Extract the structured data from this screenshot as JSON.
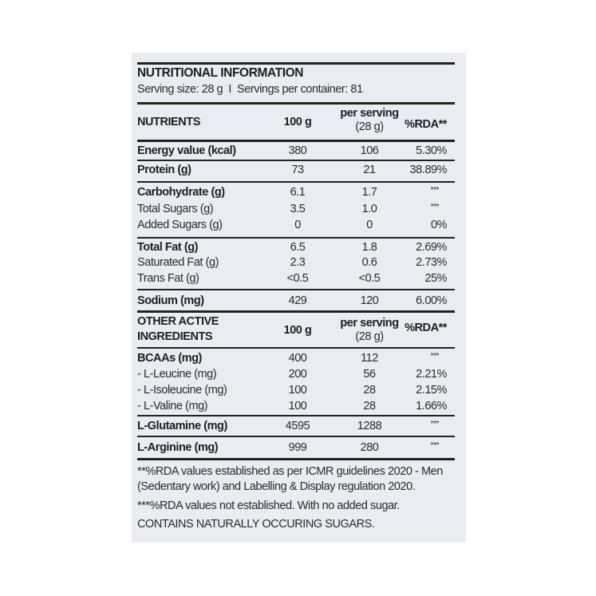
{
  "title": "NUTRITIONAL INFORMATION",
  "serving_line": "Serving size: 28 g  I  Servings per container: 81",
  "header": {
    "col0": "NUTRIENTS",
    "col1": "100 g",
    "col2a": "per serving",
    "col2b": "(28 g)",
    "col3": "%RDA**"
  },
  "header2": {
    "col0a": "OTHER ACTIVE",
    "col0b": "INGREDIENTS",
    "col1": "100 g",
    "col2a": "per serving",
    "col2b": "(28 g)",
    "col3": "%RDA**"
  },
  "rows": [
    {
      "name": "Energy value (kcal)",
      "per100": "380",
      "serving": "106",
      "rda": "5.30%",
      "bold": true
    },
    {
      "name": "Protein (g)",
      "per100": "73",
      "serving": "21",
      "rda": "38.89%",
      "bold": true
    },
    {
      "name": "Carbohydrate (g)",
      "per100": "6.1",
      "serving": "1.7",
      "rda": "***",
      "bold": true
    },
    {
      "name": "Total Sugars (g)",
      "per100": "3.5",
      "serving": "1.0",
      "rda": "***",
      "bold": false
    },
    {
      "name": "Added Sugars (g)",
      "per100": "0",
      "serving": "0",
      "rda": "0%",
      "bold": false
    },
    {
      "name": "Total Fat (g)",
      "per100": "6.5",
      "serving": "1.8",
      "rda": "2.69%",
      "bold": true
    },
    {
      "name": "Saturated Fat (g)",
      "per100": "2.3",
      "serving": "0.6",
      "rda": "2.73%",
      "bold": false
    },
    {
      "name": "Trans Fat (g)",
      "per100": "<0.5",
      "serving": "<0.5",
      "rda": "25%",
      "bold": false
    },
    {
      "name": "Sodium (mg)",
      "per100": "429",
      "serving": "120",
      "rda": "6.00%",
      "bold": true
    },
    {
      "name": "BCAAs (mg)",
      "per100": "400",
      "serving": "112",
      "rda": "***",
      "bold": true
    },
    {
      "name": "- L-Leucine (mg)",
      "per100": "200",
      "serving": "56",
      "rda": "2.21%",
      "bold": false
    },
    {
      "name": "- L-Isoleucine (mg)",
      "per100": "100",
      "serving": "28",
      "rda": "2.15%",
      "bold": false
    },
    {
      "name": "- L-Valine (mg)",
      "per100": "100",
      "serving": "28",
      "rda": "1.66%",
      "bold": false
    },
    {
      "name": "L-Glutamine (mg)",
      "per100": "4595",
      "serving": "1288",
      "rda": "***",
      "bold": true
    },
    {
      "name": "L-Arginine (mg)",
      "per100": "999",
      "serving": "280",
      "rda": "***",
      "bold": true
    }
  ],
  "footnotes": [
    "**%RDA values established as per ICMR guidelines 2020 - Men",
    "(Sedentary work) and Labelling & Display regulation 2020.",
    "***%RDA values not established. With no added sugar.",
    "CONTAINS NATURALLY OCCURING SUGARS."
  ]
}
